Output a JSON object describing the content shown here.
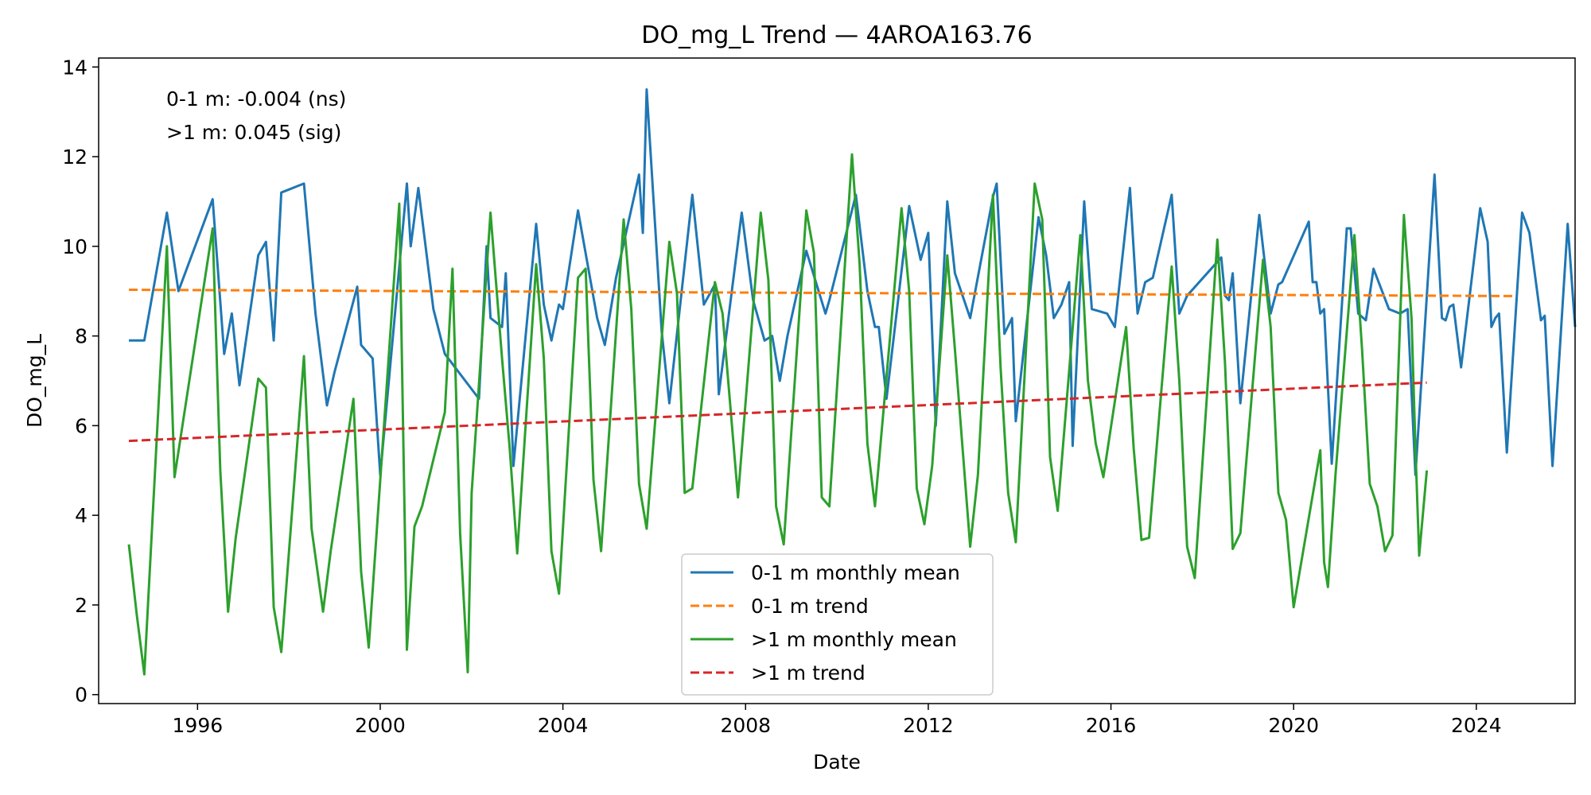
{
  "chart_data": {
    "type": "line",
    "title": "DO_mg_L Trend — 4AROA163.76",
    "xlabel": "Date",
    "ylabel": "DO_mg_L",
    "xlim": [
      "1993-11-01",
      "2026-03-01"
    ],
    "ylim": [
      -0.2,
      14.2
    ],
    "x_ticks": [
      "1996-01-01",
      "2000-01-01",
      "2004-01-01",
      "2008-01-01",
      "2012-01-01",
      "2016-01-01",
      "2020-01-01",
      "2024-01-01"
    ],
    "x_tick_labels": [
      "1996",
      "2000",
      "2004",
      "2008",
      "2012",
      "2016",
      "2020",
      "2024"
    ],
    "y_ticks": [
      0,
      2,
      4,
      6,
      8,
      10,
      12,
      14
    ],
    "y_tick_labels": [
      "0",
      "2",
      "4",
      "6",
      "8",
      "10",
      "12",
      "14"
    ],
    "grid": false,
    "legend_position": "bottom-center",
    "annotations": [
      "0-1 m: -0.004 (ns)",
      ">1 m: 0.045 (sig)"
    ],
    "series": [
      {
        "name": "0-1 m monthly mean",
        "color": "#1f77b4",
        "style": "solid",
        "points": [
          [
            "1994-07-01",
            7.9
          ],
          [
            "1994-11-01",
            7.9
          ],
          [
            "1995-05-01",
            10.75
          ],
          [
            "1995-08-01",
            9.0
          ],
          [
            "1996-05-01",
            11.05
          ],
          [
            "1996-08-01",
            7.6
          ],
          [
            "1996-10-01",
            8.5
          ],
          [
            "1996-12-01",
            6.9
          ],
          [
            "1997-05-01",
            9.8
          ],
          [
            "1997-07-01",
            10.1
          ],
          [
            "1997-09-01",
            7.9
          ],
          [
            "1997-11-01",
            11.2
          ],
          [
            "1998-05-01",
            11.4
          ],
          [
            "1998-08-01",
            8.5
          ],
          [
            "1998-11-01",
            6.45
          ],
          [
            "1999-01-01",
            7.2
          ],
          [
            "1999-07-01",
            9.1
          ],
          [
            "1999-08-01",
            7.8
          ],
          [
            "1999-11-01",
            7.5
          ],
          [
            "2000-01-01",
            4.9
          ],
          [
            "2000-08-01",
            11.4
          ],
          [
            "2000-09-01",
            10.0
          ],
          [
            "2000-11-01",
            11.3
          ],
          [
            "2001-03-01",
            8.6
          ],
          [
            "2001-06-01",
            7.6
          ],
          [
            "2002-03-01",
            6.6
          ],
          [
            "2002-05-01",
            10.0
          ],
          [
            "2002-06-01",
            8.4
          ],
          [
            "2002-09-01",
            8.2
          ],
          [
            "2002-10-01",
            9.4
          ],
          [
            "2002-12-01",
            5.1
          ],
          [
            "2003-06-01",
            10.5
          ],
          [
            "2003-08-01",
            8.7
          ],
          [
            "2003-10-01",
            7.9
          ],
          [
            "2003-12-01",
            8.7
          ],
          [
            "2004-01-01",
            8.6
          ],
          [
            "2004-05-01",
            10.8
          ],
          [
            "2004-10-01",
            8.4
          ],
          [
            "2004-12-01",
            7.8
          ],
          [
            "2005-03-01",
            9.3
          ],
          [
            "2005-09-01",
            11.6
          ],
          [
            "2005-10-01",
            10.3
          ],
          [
            "2005-11-01",
            13.5
          ],
          [
            "2006-03-01",
            8.1
          ],
          [
            "2006-05-01",
            6.5
          ],
          [
            "2006-11-01",
            11.15
          ],
          [
            "2007-02-01",
            8.7
          ],
          [
            "2007-05-01",
            9.15
          ],
          [
            "2007-06-01",
            6.7
          ],
          [
            "2007-12-01",
            10.75
          ],
          [
            "2008-03-01",
            8.8
          ],
          [
            "2008-06-01",
            7.9
          ],
          [
            "2008-08-01",
            8.0
          ],
          [
            "2008-10-01",
            7.0
          ],
          [
            "2008-12-01",
            8.0
          ],
          [
            "2009-05-01",
            9.9
          ],
          [
            "2009-10-01",
            8.5
          ],
          [
            "2009-11-01",
            8.8
          ],
          [
            "2010-06-01",
            11.15
          ],
          [
            "2010-09-01",
            9.0
          ],
          [
            "2010-11-01",
            8.2
          ],
          [
            "2010-12-01",
            8.2
          ],
          [
            "2011-02-01",
            6.6
          ],
          [
            "2011-08-01",
            10.9
          ],
          [
            "2011-09-01",
            10.5
          ],
          [
            "2011-11-01",
            9.7
          ],
          [
            "2012-01-01",
            10.3
          ],
          [
            "2012-03-01",
            6.0
          ],
          [
            "2012-06-01",
            11.0
          ],
          [
            "2012-08-01",
            9.4
          ],
          [
            "2012-10-01",
            8.9
          ],
          [
            "2012-12-01",
            8.4
          ],
          [
            "2013-06-01",
            11.1
          ],
          [
            "2013-07-01",
            11.4
          ],
          [
            "2013-09-01",
            8.05
          ],
          [
            "2013-11-01",
            8.4
          ],
          [
            "2013-12-01",
            6.1
          ],
          [
            "2014-06-01",
            10.65
          ],
          [
            "2014-08-01",
            9.8
          ],
          [
            "2014-10-01",
            8.4
          ],
          [
            "2014-12-01",
            8.7
          ],
          [
            "2015-02-01",
            9.2
          ],
          [
            "2015-03-01",
            5.55
          ],
          [
            "2015-06-01",
            11.0
          ],
          [
            "2015-08-01",
            8.6
          ],
          [
            "2015-10-01",
            8.55
          ],
          [
            "2015-12-01",
            8.5
          ],
          [
            "2016-02-01",
            8.2
          ],
          [
            "2016-06-01",
            11.3
          ],
          [
            "2016-08-01",
            8.5
          ],
          [
            "2016-10-01",
            9.2
          ],
          [
            "2016-12-01",
            9.3
          ],
          [
            "2017-05-01",
            11.15
          ],
          [
            "2017-07-01",
            8.5
          ],
          [
            "2017-09-01",
            8.9
          ],
          [
            "2018-06-01",
            9.75
          ],
          [
            "2018-07-01",
            8.9
          ],
          [
            "2018-08-01",
            8.8
          ],
          [
            "2018-09-01",
            9.4
          ],
          [
            "2018-11-01",
            6.5
          ],
          [
            "2019-04-01",
            10.7
          ],
          [
            "2019-07-01",
            8.5
          ],
          [
            "2019-09-01",
            9.15
          ],
          [
            "2019-10-01",
            9.2
          ],
          [
            "2020-05-01",
            10.55
          ],
          [
            "2020-06-01",
            9.2
          ],
          [
            "2020-07-01",
            9.2
          ],
          [
            "2020-08-01",
            8.5
          ],
          [
            "2020-09-01",
            8.6
          ],
          [
            "2020-11-01",
            5.15
          ],
          [
            "2021-03-01",
            10.4
          ],
          [
            "2021-04-01",
            10.4
          ],
          [
            "2021-06-01",
            8.5
          ],
          [
            "2021-08-01",
            8.35
          ],
          [
            "2021-10-01",
            9.5
          ],
          [
            "2022-02-01",
            8.6
          ],
          [
            "2022-05-01",
            8.5
          ],
          [
            "2022-07-01",
            8.6
          ],
          [
            "2022-09-01",
            4.9
          ],
          [
            "2023-02-01",
            11.6
          ],
          [
            "2023-04-01",
            8.4
          ],
          [
            "2023-05-01",
            8.35
          ],
          [
            "2023-06-01",
            8.65
          ],
          [
            "2023-07-01",
            8.7
          ],
          [
            "2023-09-01",
            7.3
          ],
          [
            "2024-02-01",
            10.85
          ],
          [
            "2024-04-01",
            10.1
          ],
          [
            "2024-05-01",
            8.2
          ],
          [
            "2024-06-01",
            8.4
          ],
          [
            "2024-07-01",
            8.5
          ],
          [
            "2024-09-01",
            5.4
          ],
          [
            "2025-01-01",
            10.75
          ],
          [
            "2025-03-01",
            10.3
          ],
          [
            "2025-06-01",
            8.35
          ],
          [
            "2025-07-01",
            8.45
          ],
          [
            "2025-09-01",
            5.1
          ],
          [
            "2026-01-01",
            10.5
          ],
          [
            "2026-03-01",
            8.2
          ]
        ]
      },
      {
        "name": "0-1 m trend",
        "color": "#ff7f0e",
        "style": "dashed",
        "points": [
          [
            "1994-07-01",
            9.03
          ],
          [
            "2024-11-01",
            8.89
          ]
        ]
      },
      {
        "name": ">1 m monthly mean",
        "color": "#2ca02c",
        "style": "solid",
        "points": [
          [
            "1994-07-01",
            3.35
          ],
          [
            "1994-09-01",
            1.8
          ],
          [
            "1994-11-01",
            0.45
          ],
          [
            "1995-05-01",
            10.0
          ],
          [
            "1995-07-01",
            4.85
          ],
          [
            "1996-05-01",
            10.4
          ],
          [
            "1996-07-01",
            5.0
          ],
          [
            "1996-09-01",
            1.85
          ],
          [
            "1996-11-01",
            3.5
          ],
          [
            "1997-05-01",
            7.05
          ],
          [
            "1997-07-01",
            6.85
          ],
          [
            "1997-09-01",
            1.95
          ],
          [
            "1997-11-01",
            0.95
          ],
          [
            "1998-05-01",
            7.55
          ],
          [
            "1998-07-01",
            3.7
          ],
          [
            "1998-10-01",
            1.85
          ],
          [
            "1998-12-01",
            3.2
          ],
          [
            "1999-06-01",
            6.6
          ],
          [
            "1999-08-01",
            2.75
          ],
          [
            "1999-10-01",
            1.05
          ],
          [
            "2000-06-01",
            10.95
          ],
          [
            "2000-08-01",
            1.0
          ],
          [
            "2000-10-01",
            3.75
          ],
          [
            "2000-12-01",
            4.2
          ],
          [
            "2001-06-01",
            6.3
          ],
          [
            "2001-08-01",
            9.5
          ],
          [
            "2001-10-01",
            3.6
          ],
          [
            "2001-12-01",
            0.5
          ],
          [
            "2002-01-01",
            4.5
          ],
          [
            "2002-06-01",
            10.75
          ],
          [
            "2002-09-01",
            7.5
          ],
          [
            "2002-11-01",
            5.5
          ],
          [
            "2003-01-01",
            3.15
          ],
          [
            "2003-06-01",
            9.6
          ],
          [
            "2003-08-01",
            7.5
          ],
          [
            "2003-10-01",
            3.2
          ],
          [
            "2003-12-01",
            2.25
          ],
          [
            "2004-05-01",
            9.3
          ],
          [
            "2004-07-01",
            9.5
          ],
          [
            "2004-09-01",
            4.8
          ],
          [
            "2004-11-01",
            3.2
          ],
          [
            "2005-05-01",
            10.6
          ],
          [
            "2005-07-01",
            8.6
          ],
          [
            "2005-09-01",
            4.7
          ],
          [
            "2005-11-01",
            3.7
          ],
          [
            "2006-05-01",
            10.1
          ],
          [
            "2006-07-01",
            8.95
          ],
          [
            "2006-09-01",
            4.5
          ],
          [
            "2006-11-01",
            4.6
          ],
          [
            "2007-05-01",
            9.2
          ],
          [
            "2007-07-01",
            8.5
          ],
          [
            "2007-11-01",
            4.4
          ],
          [
            "2008-05-01",
            10.75
          ],
          [
            "2008-07-01",
            9.25
          ],
          [
            "2008-09-01",
            4.2
          ],
          [
            "2008-11-01",
            3.35
          ],
          [
            "2009-05-01",
            10.8
          ],
          [
            "2009-07-01",
            9.85
          ],
          [
            "2009-09-01",
            4.4
          ],
          [
            "2009-11-01",
            4.2
          ],
          [
            "2010-05-01",
            12.05
          ],
          [
            "2010-07-01",
            9.6
          ],
          [
            "2010-09-01",
            5.6
          ],
          [
            "2010-11-01",
            4.2
          ],
          [
            "2011-06-01",
            10.85
          ],
          [
            "2011-08-01",
            9.0
          ],
          [
            "2011-10-01",
            4.6
          ],
          [
            "2011-12-01",
            3.8
          ],
          [
            "2012-02-01",
            5.1
          ],
          [
            "2012-06-01",
            9.8
          ],
          [
            "2012-08-01",
            7.7
          ],
          [
            "2012-10-01",
            5.5
          ],
          [
            "2012-12-01",
            3.3
          ],
          [
            "2013-02-01",
            4.9
          ],
          [
            "2013-06-01",
            11.15
          ],
          [
            "2013-08-01",
            7.3
          ],
          [
            "2013-10-01",
            4.5
          ],
          [
            "2013-12-01",
            3.4
          ],
          [
            "2014-05-01",
            11.4
          ],
          [
            "2014-07-01",
            10.6
          ],
          [
            "2014-09-01",
            5.3
          ],
          [
            "2014-11-01",
            4.1
          ],
          [
            "2015-05-01",
            10.25
          ],
          [
            "2015-07-01",
            7.0
          ],
          [
            "2015-09-01",
            5.6
          ],
          [
            "2015-11-01",
            4.85
          ],
          [
            "2016-05-01",
            8.2
          ],
          [
            "2016-07-01",
            5.5
          ],
          [
            "2016-09-01",
            3.45
          ],
          [
            "2016-11-01",
            3.5
          ],
          [
            "2017-05-01",
            9.55
          ],
          [
            "2017-07-01",
            7.0
          ],
          [
            "2017-09-01",
            3.3
          ],
          [
            "2017-11-01",
            2.6
          ],
          [
            "2018-05-01",
            10.15
          ],
          [
            "2018-07-01",
            7.4
          ],
          [
            "2018-09-01",
            3.25
          ],
          [
            "2018-11-01",
            3.6
          ],
          [
            "2019-05-01",
            9.7
          ],
          [
            "2019-07-01",
            8.2
          ],
          [
            "2019-09-01",
            4.5
          ],
          [
            "2019-11-01",
            3.9
          ],
          [
            "2020-01-01",
            1.95
          ],
          [
            "2020-08-01",
            5.45
          ],
          [
            "2020-09-01",
            2.95
          ],
          [
            "2020-10-01",
            2.4
          ],
          [
            "2020-12-01",
            4.9
          ],
          [
            "2021-05-01",
            10.25
          ],
          [
            "2021-07-01",
            7.7
          ],
          [
            "2021-09-01",
            4.7
          ],
          [
            "2021-11-01",
            4.2
          ],
          [
            "2022-01-01",
            3.2
          ],
          [
            "2022-03-01",
            3.55
          ],
          [
            "2022-06-01",
            10.7
          ],
          [
            "2022-08-01",
            8.4
          ],
          [
            "2022-09-01",
            5.5
          ],
          [
            "2022-10-01",
            3.1
          ],
          [
            "2022-12-01",
            5.0
          ]
        ]
      },
      {
        "name": ">1 m trend",
        "color": "#d62728",
        "style": "dashed",
        "points": [
          [
            "1994-07-01",
            5.66
          ],
          [
            "2022-12-01",
            6.96
          ]
        ]
      }
    ]
  }
}
